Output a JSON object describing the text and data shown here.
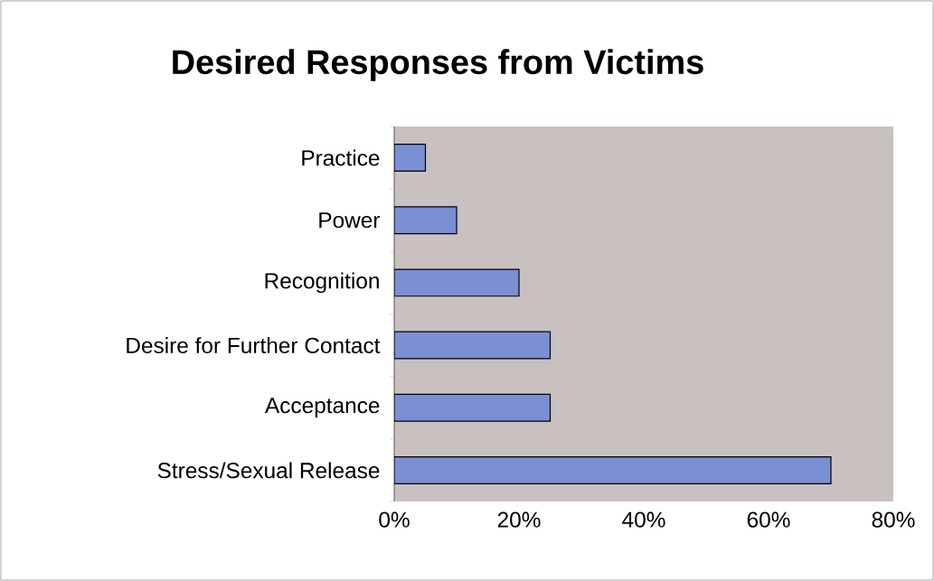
{
  "chart_data": {
    "type": "bar",
    "orientation": "horizontal",
    "title": "Desired Responses from Victims",
    "categories": [
      "Practice",
      "Power",
      "Recognition",
      "Desire for Further Contact",
      "Acceptance",
      "Stress/Sexual Release"
    ],
    "values": [
      5,
      10,
      20,
      25,
      25,
      70
    ],
    "color": "#7b8fd4",
    "xlim": [
      0,
      80
    ],
    "xticks": [
      {
        "value": 0,
        "label": "0%"
      },
      {
        "value": 20,
        "label": "20%"
      },
      {
        "value": 40,
        "label": "40%"
      },
      {
        "value": 60,
        "label": "60%"
      },
      {
        "value": 80,
        "label": "80%"
      }
    ],
    "grid": false
  }
}
